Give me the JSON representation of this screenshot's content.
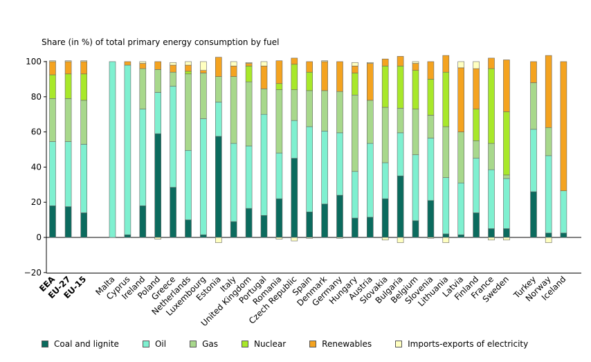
{
  "chart_data": {
    "type": "bar",
    "stacked": true,
    "title": "Share (in %) of total primary energy consumption by fuel",
    "xlabel": "",
    "ylabel": "",
    "ylim": [
      -20,
      100
    ],
    "yticks": [
      -20,
      0,
      20,
      40,
      60,
      80,
      100
    ],
    "grid": false,
    "legend_position": "bottom",
    "bold_categories": [
      "EEA",
      "EU-27",
      "EU-15"
    ],
    "categories": [
      "EEA",
      "EU-27",
      "EU-15",
      "Malta",
      "Cyprus",
      "Ireland",
      "Poland",
      "Greece",
      "Netherlands",
      "Luxembourg",
      "Estonia",
      "Italy",
      "United Kingdom",
      "Portugal",
      "Romania",
      "Czech Republic",
      "Spain",
      "Denmark",
      "Germany",
      "Hungary",
      "Austria",
      "Slovakia",
      "Bulgaria",
      "Belgium",
      "Slovenia",
      "Lithuania",
      "Latvia",
      "Finland",
      "France",
      "Sweden",
      "Turkey",
      "Norway",
      "Iceland"
    ],
    "series": [
      {
        "name": "Coal and lignite",
        "color": "#0b6b5e",
        "values": [
          18,
          17.5,
          14,
          0,
          1.5,
          18,
          59,
          28.5,
          10,
          1.5,
          57.5,
          9,
          16.5,
          12.5,
          22,
          45,
          14.5,
          19,
          24,
          11,
          11.5,
          22,
          35,
          9.5,
          21,
          2,
          1.5,
          14,
          5,
          5,
          26,
          2.5,
          2.5
        ]
      },
      {
        "name": "Oil",
        "color": "#7ff0d0",
        "values": [
          36.5,
          37,
          39,
          100,
          96.5,
          55,
          23.5,
          57.5,
          39.5,
          66,
          19.5,
          44.5,
          35.5,
          57.5,
          26,
          21.5,
          48.5,
          41.5,
          35.5,
          26.5,
          42,
          20.5,
          24.5,
          37.5,
          35.5,
          32,
          29.5,
          31,
          33.5,
          28.5,
          35.5,
          44,
          24
        ]
      },
      {
        "name": "Gas",
        "color": "#a8d88c",
        "values": [
          24.5,
          24.5,
          25,
          0,
          0,
          23,
          13,
          8,
          43.5,
          26,
          14.5,
          38,
          36.5,
          14.5,
          36,
          17.5,
          20.5,
          23,
          23.5,
          43.5,
          24.5,
          31.5,
          14,
          26,
          13,
          29,
          29,
          10,
          15,
          2,
          26.5,
          16,
          0
        ]
      },
      {
        "name": "Nuclear",
        "color": "#a8e82a",
        "values": [
          13.5,
          14,
          15,
          0,
          0,
          0,
          0,
          0,
          1.5,
          0,
          0,
          0,
          9,
          0,
          3.5,
          14.5,
          10.5,
          0,
          0,
          12.5,
          0,
          23.5,
          24,
          22,
          20.5,
          31,
          0,
          18,
          42.5,
          36,
          0,
          0,
          0
        ]
      },
      {
        "name": "Renewables",
        "color": "#f4a320",
        "values": [
          7.5,
          7,
          7,
          0,
          2,
          3,
          4.5,
          4,
          3.5,
          1.5,
          11,
          6,
          1.5,
          13,
          13,
          3.5,
          6,
          16.5,
          17,
          4,
          21,
          4,
          5.5,
          4,
          10,
          9.5,
          36.5,
          23,
          6,
          29.5,
          12,
          41,
          73.5
        ]
      },
      {
        "name": "Imports-exports of electricity",
        "color": "#ffffc0",
        "values": [
          0.5,
          0.5,
          0.5,
          0,
          0,
          1,
          -1,
          1.5,
          2,
          5,
          -3,
          2.5,
          0.5,
          2.5,
          -1,
          -2,
          -0.5,
          0.5,
          -0.5,
          2,
          0.5,
          -1.5,
          -3,
          1,
          -0.5,
          -3,
          3.5,
          4,
          -1.5,
          -1.5,
          0,
          -3,
          0
        ]
      }
    ]
  }
}
